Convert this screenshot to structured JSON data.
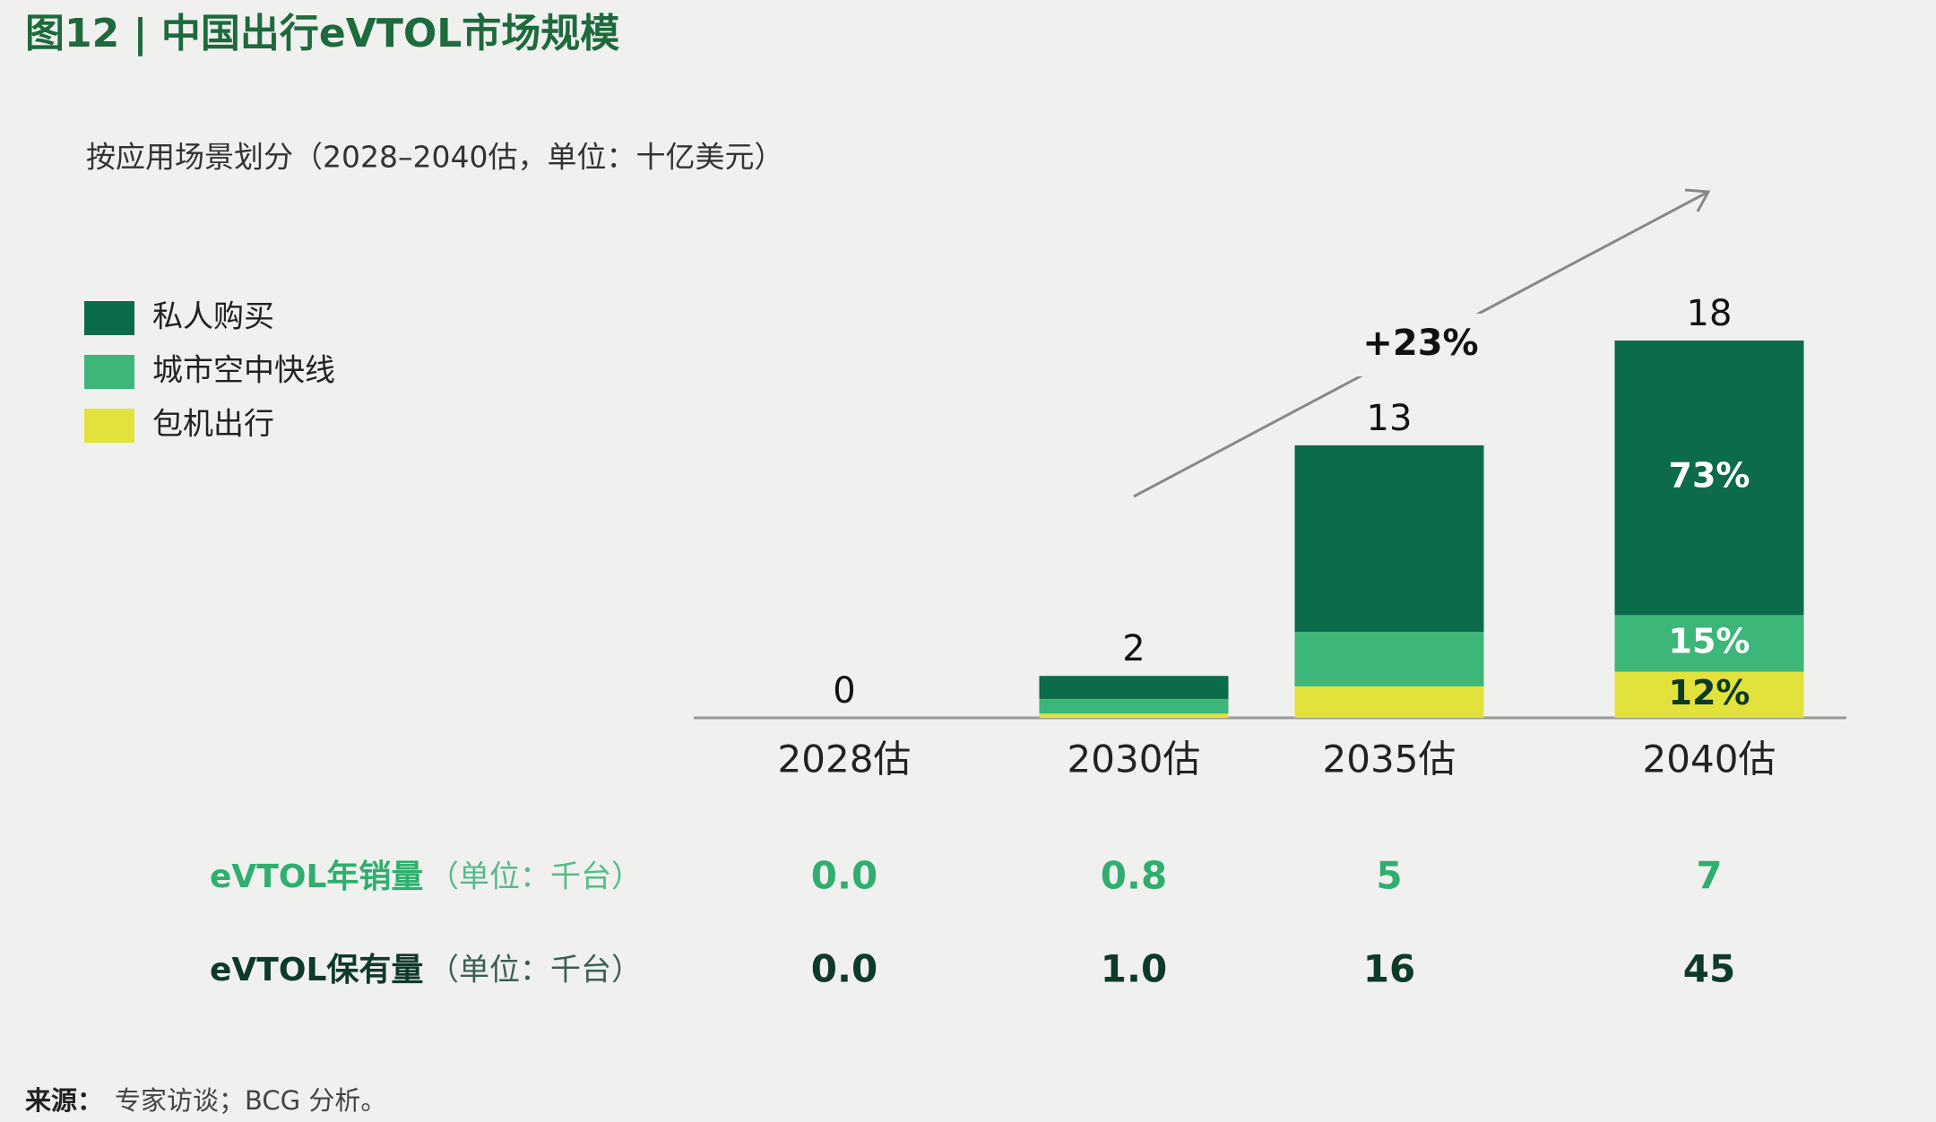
{
  "chart_data": {
    "type": "stacked_bar",
    "title": "图12 | 中国出行eVTOL市场规模",
    "subtitle": "按应用场景划分（2028–2040估，单位：十亿美元）",
    "categories": [
      "2028估",
      "2030估",
      "2035估",
      "2040估"
    ],
    "series": [
      {
        "name": "私人购买",
        "color": "#0c6b4a",
        "values": [
          0,
          1.1,
          8.9,
          13.1
        ]
      },
      {
        "name": "城市空中快线",
        "color": "#3cb679",
        "values": [
          0,
          0.7,
          2.6,
          2.7
        ]
      },
      {
        "name": "包机出行",
        "color": "#e2e23c",
        "values": [
          0,
          0.2,
          1.5,
          2.2
        ]
      }
    ],
    "totals": [
      0,
      2,
      13,
      18
    ],
    "shares": {
      "values": [
        73,
        15,
        12
      ],
      "value_labels": [
        "73%",
        "15%",
        "12%"
      ]
    },
    "growth_label": "+23%",
    "ylim": [
      0,
      18
    ],
    "table": {
      "rows": [
        {
          "label": "eVTOL年销量",
          "unit": "（单位：千台）",
          "color": "#2fae6e",
          "values": [
            "0.0",
            "0.8",
            "5",
            "7"
          ]
        },
        {
          "label": "eVTOL保有量",
          "unit": "（单位：千台）",
          "color": "#0e3a28",
          "values": [
            "0.0",
            "1.0",
            "16",
            "45"
          ]
        }
      ]
    },
    "source_label": "来源：",
    "source": "专家访谈；BCG 分析。"
  }
}
